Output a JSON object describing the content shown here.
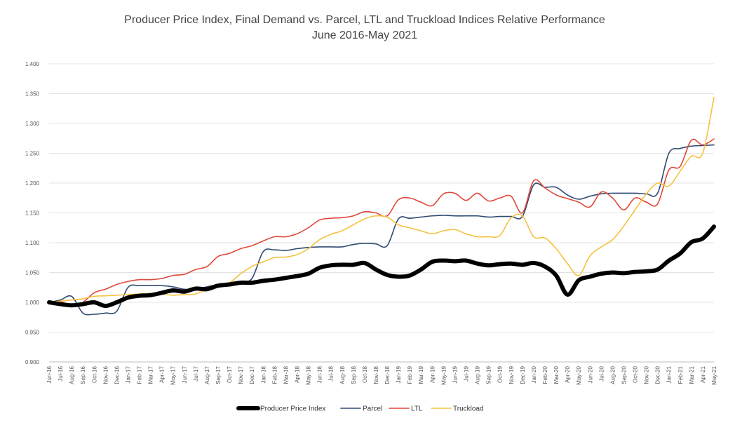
{
  "chart_data": {
    "type": "line",
    "title": "Producer Price Index, Final Demand vs. Parcel, LTL and Truckload Indices Relative Performance",
    "subtitle": "June 2016-May 2021",
    "xlabel": "",
    "ylabel": "",
    "ylim": [
      0.9,
      1.4
    ],
    "yticks": [
      "0.900",
      "0.950",
      "1.000",
      "1.050",
      "1.100",
      "1.150",
      "1.200",
      "1.250",
      "1.300",
      "1.350",
      "1.400"
    ],
    "grid": true,
    "legend_position": "bottom",
    "categories": [
      "Jun-16",
      "Jul-16",
      "Aug-16",
      "Sep-16",
      "Oct-16",
      "Nov-16",
      "Dec-16",
      "Jan-17",
      "Feb-17",
      "Mar-17",
      "Apr-17",
      "May-17",
      "Jun-17",
      "Jul-17",
      "Aug-17",
      "Sep-17",
      "Oct-17",
      "Nov-17",
      "Dec-17",
      "Jan-18",
      "Feb-18",
      "Mar-18",
      "Apr-18",
      "May-18",
      "Jun-18",
      "Jul-18",
      "Aug-18",
      "Sep-18",
      "Oct-18",
      "Nov-18",
      "Dec-18",
      "Jan-19",
      "Feb-19",
      "Mar-19",
      "Apr-19",
      "May-19",
      "Jun-19",
      "Jul-19",
      "Aug-19",
      "Sep-19",
      "Oct-19",
      "Nov-19",
      "Dec-19",
      "Jan-20",
      "Feb-20",
      "Mar-20",
      "Apr-20",
      "May-20",
      "Jun-20",
      "Jul-20",
      "Aug-20",
      "Sep-20",
      "Oct-20",
      "Nov-20",
      "Dec-20",
      "Jan-21",
      "Feb-21",
      "Mar-21",
      "Apr-21",
      "May-21"
    ],
    "series": [
      {
        "name": "Producer Price Index",
        "color": "#000000",
        "values": [
          1.0,
          0.997,
          0.995,
          0.997,
          1.0,
          0.994,
          1.0,
          1.008,
          1.011,
          1.012,
          1.016,
          1.02,
          1.018,
          1.023,
          1.022,
          1.028,
          1.03,
          1.033,
          1.033,
          1.036,
          1.038,
          1.041,
          1.044,
          1.048,
          1.058,
          1.062,
          1.063,
          1.063,
          1.066,
          1.055,
          1.046,
          1.043,
          1.045,
          1.055,
          1.068,
          1.07,
          1.069,
          1.07,
          1.065,
          1.062,
          1.064,
          1.065,
          1.063,
          1.066,
          1.06,
          1.045,
          1.013,
          1.037,
          1.043,
          1.048,
          1.05,
          1.049,
          1.051,
          1.052,
          1.055,
          1.07,
          1.082,
          1.101,
          1.107,
          1.127
        ]
      },
      {
        "name": "Parcel",
        "color": "#2f4a72",
        "values": [
          1.0,
          1.004,
          1.01,
          0.982,
          0.98,
          0.982,
          0.985,
          1.025,
          1.028,
          1.028,
          1.028,
          1.026,
          1.022,
          1.022,
          1.026,
          1.03,
          1.032,
          1.035,
          1.04,
          1.085,
          1.088,
          1.087,
          1.09,
          1.092,
          1.093,
          1.093,
          1.093,
          1.097,
          1.099,
          1.098,
          1.095,
          1.14,
          1.141,
          1.143,
          1.145,
          1.146,
          1.145,
          1.145,
          1.145,
          1.143,
          1.144,
          1.144,
          1.144,
          1.197,
          1.193,
          1.193,
          1.18,
          1.173,
          1.178,
          1.182,
          1.183,
          1.183,
          1.183,
          1.182,
          1.183,
          1.25,
          1.258,
          1.262,
          1.263,
          1.264
        ]
      },
      {
        "name": "LTL",
        "color": "#e0473a",
        "values": [
          1.0,
          1.001,
          0.995,
          1.0,
          1.016,
          1.022,
          1.03,
          1.035,
          1.038,
          1.038,
          1.04,
          1.045,
          1.047,
          1.055,
          1.06,
          1.077,
          1.082,
          1.09,
          1.095,
          1.103,
          1.11,
          1.11,
          1.115,
          1.125,
          1.138,
          1.141,
          1.142,
          1.145,
          1.152,
          1.15,
          1.145,
          1.172,
          1.175,
          1.168,
          1.162,
          1.182,
          1.183,
          1.171,
          1.183,
          1.17,
          1.175,
          1.178,
          1.15,
          1.204,
          1.192,
          1.18,
          1.174,
          1.168,
          1.16,
          1.185,
          1.175,
          1.155,
          1.175,
          1.168,
          1.165,
          1.222,
          1.228,
          1.272,
          1.264,
          1.274
        ]
      },
      {
        "name": "Truckload",
        "color": "#f5c23e",
        "values": [
          1.0,
          1.002,
          1.004,
          1.006,
          1.01,
          1.011,
          1.012,
          1.013,
          1.014,
          1.015,
          1.014,
          1.012,
          1.013,
          1.014,
          1.022,
          1.03,
          1.033,
          1.048,
          1.06,
          1.068,
          1.075,
          1.076,
          1.08,
          1.09,
          1.105,
          1.114,
          1.12,
          1.13,
          1.14,
          1.145,
          1.143,
          1.13,
          1.125,
          1.12,
          1.115,
          1.12,
          1.122,
          1.115,
          1.11,
          1.11,
          1.112,
          1.142,
          1.145,
          1.11,
          1.108,
          1.09,
          1.065,
          1.045,
          1.078,
          1.093,
          1.105,
          1.128,
          1.155,
          1.182,
          1.2,
          1.195,
          1.22,
          1.245,
          1.25,
          1.344
        ]
      }
    ]
  }
}
